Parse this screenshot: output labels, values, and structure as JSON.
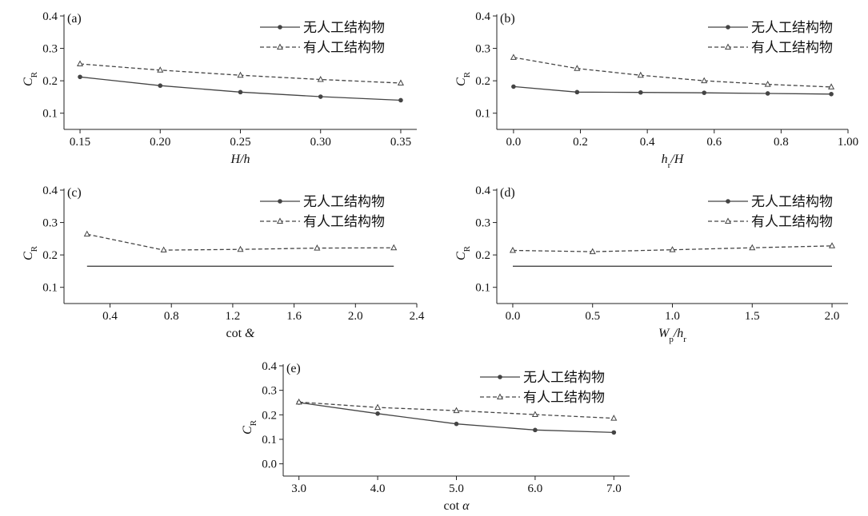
{
  "colors": {
    "series_solid": "#444444",
    "series_dashed": "#444444",
    "axis": "#222222"
  },
  "chart_data": [
    {
      "type": "line",
      "panel": "(a)",
      "xlabel": "H/h",
      "ylabel": "C_R",
      "xlim": [
        0.14,
        0.36
      ],
      "ylim": [
        0.05,
        0.4
      ],
      "xticks": [
        0.15,
        0.2,
        0.25,
        0.3,
        0.35
      ],
      "xtick_labels": [
        "0.15",
        "0.20",
        "0.25",
        "0.30",
        "0.35"
      ],
      "yticks": [
        0.1,
        0.2,
        0.3,
        0.4
      ],
      "ytick_labels": [
        "0.1",
        "0.2",
        "0.3",
        "0.4"
      ],
      "legend_position": "top-right",
      "series": [
        {
          "name": "无人工结构物",
          "style": "solid",
          "marker": "circle",
          "x": [
            0.15,
            0.2,
            0.25,
            0.3,
            0.35
          ],
          "y": [
            0.212,
            0.185,
            0.165,
            0.151,
            0.14
          ]
        },
        {
          "name": "有人工结构物",
          "style": "dashed",
          "marker": "triangle",
          "x": [
            0.15,
            0.2,
            0.25,
            0.3,
            0.35
          ],
          "y": [
            0.252,
            0.233,
            0.217,
            0.204,
            0.193
          ]
        }
      ]
    },
    {
      "type": "line",
      "panel": "(b)",
      "xlabel": "h_r/H",
      "ylabel": "C_R",
      "xlim": [
        -0.05,
        1.0
      ],
      "ylim": [
        0.05,
        0.4
      ],
      "xticks": [
        0.0,
        0.2,
        0.4,
        0.6,
        0.8,
        1.0
      ],
      "xtick_labels": [
        "0.0",
        "0.2",
        "0.4",
        "0.6",
        "0.8",
        "1.00"
      ],
      "yticks": [
        0.1,
        0.2,
        0.3,
        0.4
      ],
      "ytick_labels": [
        "0.1",
        "0.2",
        "0.3",
        "0.4"
      ],
      "legend_position": "top-right",
      "series": [
        {
          "name": "无人工结构物",
          "style": "solid",
          "marker": "circle",
          "x": [
            0.0,
            0.19,
            0.38,
            0.57,
            0.76,
            0.95
          ],
          "y": [
            0.182,
            0.165,
            0.164,
            0.163,
            0.161,
            0.159
          ]
        },
        {
          "name": "有人工结构物",
          "style": "dashed",
          "marker": "triangle",
          "x": [
            0.0,
            0.19,
            0.38,
            0.57,
            0.76,
            0.95
          ],
          "y": [
            0.272,
            0.238,
            0.217,
            0.2,
            0.189,
            0.181
          ]
        }
      ]
    },
    {
      "type": "line",
      "panel": "(c)",
      "xlabel": "cot &",
      "ylabel": "C_R",
      "xlim": [
        0.1,
        2.4
      ],
      "ylim": [
        0.05,
        0.4
      ],
      "xticks": [
        0.4,
        0.8,
        1.2,
        1.6,
        2.0,
        2.4
      ],
      "xtick_labels": [
        "0.4",
        "0.8",
        "1.2",
        "1.6",
        "2.0",
        "2.4"
      ],
      "yticks": [
        0.1,
        0.2,
        0.3,
        0.4
      ],
      "ytick_labels": [
        "0.1",
        "0.2",
        "0.3",
        "0.4"
      ],
      "legend_position": "top-right",
      "series": [
        {
          "name": "无人工结构物",
          "style": "solid",
          "marker": "none",
          "x": [
            0.25,
            0.75,
            1.25,
            1.75,
            2.25
          ],
          "y": [
            0.165,
            0.165,
            0.165,
            0.165,
            0.165
          ]
        },
        {
          "name": "有人工结构物",
          "style": "dashed",
          "marker": "triangle",
          "x": [
            0.25,
            0.75,
            1.25,
            1.75,
            2.25
          ],
          "y": [
            0.264,
            0.215,
            0.217,
            0.221,
            0.222
          ]
        }
      ]
    },
    {
      "type": "line",
      "panel": "(d)",
      "xlabel": "W_p/h_r",
      "ylabel": "C_R",
      "xlim": [
        -0.1,
        2.1
      ],
      "ylim": [
        0.05,
        0.4
      ],
      "xticks": [
        0.0,
        0.5,
        1.0,
        1.5,
        2.0
      ],
      "xtick_labels": [
        "0.0",
        "0.5",
        "1.0",
        "1.5",
        "2.0"
      ],
      "yticks": [
        0.1,
        0.2,
        0.3,
        0.4
      ],
      "ytick_labels": [
        "0.1",
        "0.2",
        "0.3",
        "0.4"
      ],
      "legend_position": "top-right",
      "series": [
        {
          "name": "无人工结构物",
          "style": "solid",
          "marker": "none",
          "x": [
            0.0,
            0.5,
            1.0,
            1.5,
            2.0
          ],
          "y": [
            0.165,
            0.165,
            0.165,
            0.165,
            0.165
          ]
        },
        {
          "name": "有人工结构物",
          "style": "dashed",
          "marker": "triangle",
          "x": [
            0.0,
            0.5,
            1.0,
            1.5,
            2.0
          ],
          "y": [
            0.214,
            0.21,
            0.216,
            0.222,
            0.228
          ]
        }
      ]
    },
    {
      "type": "line",
      "panel": "(e)",
      "xlabel": "cot α",
      "ylabel": "C_R",
      "xlim": [
        2.8,
        7.2
      ],
      "ylim": [
        -0.05,
        0.4
      ],
      "xticks": [
        3.0,
        4.0,
        5.0,
        6.0,
        7.0
      ],
      "xtick_labels": [
        "3.0",
        "4.0",
        "5.0",
        "6.0",
        "7.0"
      ],
      "yticks": [
        0.0,
        0.1,
        0.2,
        0.3,
        0.4
      ],
      "ytick_labels": [
        "0.0",
        "0.1",
        "0.2",
        "0.3",
        "0.4"
      ],
      "legend_position": "top-right",
      "series": [
        {
          "name": "无人工结构物",
          "style": "solid",
          "marker": "circle",
          "x": [
            3.0,
            4.0,
            5.0,
            6.0,
            7.0
          ],
          "y": [
            0.25,
            0.205,
            0.163,
            0.138,
            0.128
          ]
        },
        {
          "name": "有人工结构物",
          "style": "dashed",
          "marker": "triangle",
          "x": [
            3.0,
            4.0,
            5.0,
            6.0,
            7.0
          ],
          "y": [
            0.252,
            0.23,
            0.217,
            0.201,
            0.186
          ]
        }
      ]
    }
  ]
}
